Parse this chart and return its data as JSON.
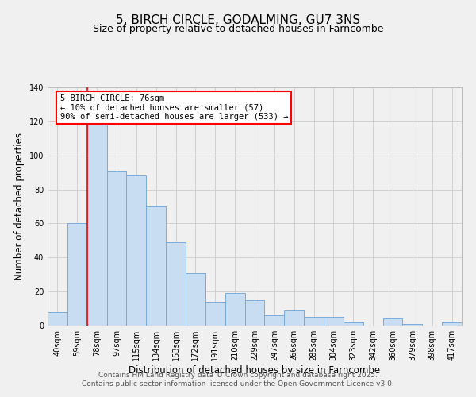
{
  "title": "5, BIRCH CIRCLE, GODALMING, GU7 3NS",
  "subtitle": "Size of property relative to detached houses in Farncombe",
  "xlabel": "Distribution of detached houses by size in Farncombe",
  "ylabel": "Number of detached properties",
  "categories": [
    "40sqm",
    "59sqm",
    "78sqm",
    "97sqm",
    "115sqm",
    "134sqm",
    "153sqm",
    "172sqm",
    "191sqm",
    "210sqm",
    "229sqm",
    "247sqm",
    "266sqm",
    "285sqm",
    "304sqm",
    "323sqm",
    "342sqm",
    "360sqm",
    "379sqm",
    "398sqm",
    "417sqm"
  ],
  "values": [
    8,
    60,
    118,
    91,
    88,
    70,
    49,
    31,
    14,
    19,
    15,
    6,
    9,
    5,
    5,
    2,
    0,
    4,
    1,
    0,
    2
  ],
  "bar_color": "#c9ddf2",
  "bar_edge_color": "#7aabda",
  "red_line_x": 1.5,
  "annotation_title": "5 BIRCH CIRCLE: 76sqm",
  "annotation_line1": "← 10% of detached houses are smaller (57)",
  "annotation_line2": "90% of semi-detached houses are larger (533) →",
  "footer1": "Contains HM Land Registry data © Crown copyright and database right 2025.",
  "footer2": "Contains public sector information licensed under the Open Government Licence v3.0.",
  "ylim": [
    0,
    140
  ],
  "yticks": [
    0,
    20,
    40,
    60,
    80,
    100,
    120,
    140
  ],
  "background_color": "#f0f0f0",
  "grid_color": "#cccccc",
  "title_fontsize": 11,
  "subtitle_fontsize": 9,
  "axis_label_fontsize": 8.5,
  "tick_fontsize": 7,
  "annotation_fontsize": 7.5,
  "footer_fontsize": 6.5
}
